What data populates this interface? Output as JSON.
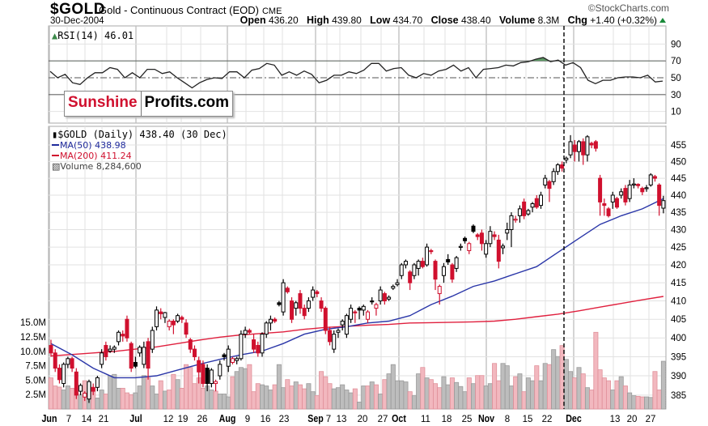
{
  "header": {
    "symbol": "$GOLD",
    "name": "Gold - Continuous Contract (EOD)",
    "exchange": "CME",
    "date": "30-Dec-2004",
    "copyright": "©StockCharts.com",
    "quote": [
      {
        "label": "Open",
        "value": "436.20"
      },
      {
        "label": "High",
        "value": "439.80"
      },
      {
        "label": "Low",
        "value": "434.70"
      },
      {
        "label": "Close",
        "value": "438.40"
      },
      {
        "label": "Volume",
        "value": "8.3M"
      },
      {
        "label": "Chg",
        "value": "+1.40 (+0.32%)"
      }
    ],
    "chg_direction": "up"
  },
  "watermark": {
    "part1": "Sunshine",
    "part2": "Profits.com"
  },
  "colors": {
    "up": "#000000",
    "down": "#d0102e",
    "ma50": "#2a36a8",
    "ma200": "#e0203e",
    "rsi_overbought_fill": "#5e9a66",
    "volume_up": "#bdbdbd",
    "volume_down": "#f2b8bf"
  },
  "chart_data": {
    "type": "candlestick",
    "x_tick_labels": [
      "Jun",
      "7",
      "14",
      "21",
      "Jul",
      "12",
      "19",
      "26",
      "Aug",
      "9",
      "16",
      "23",
      "Sep",
      "7",
      "13",
      "20",
      "27",
      "Oct",
      "11",
      "18",
      "25",
      "Nov",
      "8",
      "15",
      "22",
      "Dec",
      "13",
      "20",
      "27"
    ],
    "x_month_labels": [
      "Jun",
      "Jul",
      "Aug",
      "Sep",
      "Oct",
      "Nov",
      "Dec"
    ],
    "rsi": {
      "legend": "RSI(14) 46.01",
      "yticks": [
        90,
        70,
        50,
        30,
        10
      ],
      "ylim": [
        0,
        100
      ],
      "reference_lines": [
        70,
        50,
        30
      ],
      "values": [
        57.6,
        50,
        54,
        44,
        42,
        50,
        56,
        56,
        62,
        60,
        50,
        56,
        50,
        60,
        60,
        55,
        57,
        50,
        44,
        38,
        44,
        48,
        50,
        49,
        57,
        57,
        50,
        59,
        61,
        67,
        65,
        53,
        57,
        53,
        58,
        54,
        44,
        47,
        53,
        53,
        57,
        55,
        59,
        67,
        67,
        58,
        61,
        62,
        53,
        50,
        55,
        53,
        58,
        60,
        65,
        58,
        62,
        50,
        60,
        61,
        62,
        65,
        64,
        68,
        69,
        72,
        74,
        69,
        71,
        65,
        68,
        62,
        47,
        43,
        47,
        47,
        50,
        51,
        51,
        50,
        53,
        45,
        46.01
      ]
    },
    "price": {
      "legend": "$GOLD (Daily) 438.40 (30 Dec)",
      "scale": "log",
      "yticks": [
        455,
        450,
        445,
        440,
        435,
        430,
        425,
        420,
        415,
        410,
        405,
        400,
        395,
        390,
        385
      ],
      "ohlc": [
        [
          398,
          399.5,
          395,
          396
        ],
        [
          396,
          397,
          391,
          392
        ],
        [
          392,
          393,
          388,
          389
        ],
        [
          388,
          393.5,
          387,
          393
        ],
        [
          393,
          395,
          392,
          394.5
        ],
        [
          394.5,
          395,
          391,
          392
        ],
        [
          391,
          392,
          384,
          385
        ],
        [
          386,
          388,
          385,
          387.5
        ],
        [
          384.5,
          386,
          383.5,
          385.5
        ],
        [
          384,
          389,
          383,
          388.5
        ],
        [
          387,
          388,
          385,
          386
        ],
        [
          387,
          390,
          386,
          389.5
        ],
        [
          393,
          397,
          392,
          396
        ],
        [
          398,
          399,
          394,
          395
        ],
        [
          396.5,
          398,
          396,
          397
        ],
        [
          397,
          398,
          396,
          397.5
        ],
        [
          399,
          402,
          398,
          401.5
        ],
        [
          401,
          402,
          399,
          400.5
        ],
        [
          405,
          406,
          399,
          400
        ],
        [
          398.5,
          399,
          391,
          392
        ],
        [
          393.5,
          395,
          392,
          392.5
        ],
        [
          396,
          398,
          395,
          397.5
        ],
        [
          393,
          399,
          392,
          397.5
        ],
        [
          399,
          400,
          389,
          392
        ],
        [
          397,
          403,
          396,
          402
        ],
        [
          403,
          408.5,
          402,
          407.5
        ],
        [
          407,
          408,
          405,
          406.5
        ],
        [
          405.5,
          407,
          404,
          406.8
        ],
        [
          403,
          405,
          402,
          404.5
        ],
        [
          404.5,
          405,
          401,
          403.5
        ],
        [
          404.5,
          406.5,
          404,
          406
        ],
        [
          405.5,
          406,
          404,
          405
        ],
        [
          404,
          405,
          400,
          401
        ],
        [
          399.5,
          400,
          396,
          397
        ],
        [
          397,
          398,
          394,
          395
        ],
        [
          394,
          395,
          388,
          391
        ],
        [
          393,
          394,
          387,
          388
        ],
        [
          392,
          393,
          386,
          388
        ],
        [
          388,
          392,
          387,
          391.5
        ],
        [
          388,
          389,
          386,
          388.5
        ],
        [
          390,
          394,
          389,
          393
        ],
        [
          395.5,
          396,
          394,
          395
        ],
        [
          392.5,
          398,
          391,
          397
        ],
        [
          393.5,
          395,
          393,
          394.5
        ],
        [
          394,
          395,
          393,
          394.5
        ],
        [
          394.5,
          402,
          394,
          401
        ],
        [
          401,
          403,
          400,
          402
        ],
        [
          402,
          402.5,
          401,
          401.5
        ],
        [
          399.5,
          401,
          396,
          397
        ],
        [
          398,
          399,
          395,
          396
        ],
        [
          396,
          401.5,
          395,
          401
        ],
        [
          401,
          404.5,
          400,
          404
        ],
        [
          404,
          406,
          402,
          405
        ],
        [
          405,
          405.5,
          404,
          404.5
        ],
        [
          409.5,
          410,
          408.5,
          409
        ],
        [
          407,
          416,
          406,
          415
        ],
        [
          413.5,
          414,
          412,
          412.5
        ],
        [
          410,
          411,
          404,
          405
        ],
        [
          408,
          410,
          406,
          409.5
        ],
        [
          412,
          413,
          406.5,
          408
        ],
        [
          408,
          409,
          405,
          406
        ],
        [
          408,
          411,
          407,
          410
        ],
        [
          411,
          414,
          410,
          413
        ],
        [
          412.5,
          413,
          411,
          412
        ],
        [
          410,
          411,
          407,
          408
        ],
        [
          408,
          408.5,
          401,
          402
        ],
        [
          402,
          403,
          398,
          399
        ],
        [
          397,
          402,
          396,
          401
        ],
        [
          401.5,
          402.5,
          400,
          402
        ],
        [
          403.5,
          405,
          402,
          404.5
        ],
        [
          401,
          406.5,
          400,
          406
        ],
        [
          405,
          409,
          404,
          408
        ],
        [
          407,
          407.5,
          404,
          406.8
        ],
        [
          408,
          408.5,
          405,
          407.5
        ],
        [
          407.5,
          409,
          406,
          408.5
        ],
        [
          405,
          407.5,
          404,
          407
        ],
        [
          410,
          411,
          409,
          409.8
        ],
        [
          408,
          409.5,
          406,
          409
        ],
        [
          410,
          414,
          409,
          413
        ],
        [
          412,
          412.5,
          409,
          410
        ],
        [
          410.5,
          411.5,
          410,
          411
        ],
        [
          413.5,
          414.5,
          413,
          414
        ],
        [
          414.5,
          416,
          414,
          415
        ],
        [
          417,
          420.5,
          416,
          420
        ],
        [
          420,
          421.5,
          419,
          421
        ],
        [
          418,
          418.5,
          413,
          415
        ],
        [
          417,
          420.5,
          416,
          420
        ],
        [
          419,
          421.5,
          417,
          421
        ],
        [
          421,
          422,
          419,
          419.5
        ],
        [
          420,
          426,
          419.5,
          425
        ],
        [
          424,
          424.5,
          423,
          423.8
        ],
        [
          421,
          421.5,
          413,
          416
        ],
        [
          412,
          414.5,
          409,
          414
        ],
        [
          417,
          420.5,
          415,
          419.5
        ],
        [
          421.5,
          423,
          420,
          420.8
        ],
        [
          420,
          420.5,
          415,
          416
        ],
        [
          419,
          422.5,
          418,
          422
        ],
        [
          425,
          426,
          424,
          425.2
        ],
        [
          427.5,
          428,
          426,
          426.8
        ],
        [
          424,
          426.5,
          423,
          426
        ],
        [
          431,
          431.5,
          429,
          429.5
        ],
        [
          428.5,
          429,
          427,
          428
        ],
        [
          429,
          430,
          424,
          426
        ],
        [
          423,
          427,
          422,
          426
        ],
        [
          426,
          431,
          425,
          429.5
        ],
        [
          428.5,
          429.5,
          427,
          428
        ],
        [
          427,
          428.5,
          419,
          421
        ],
        [
          424.8,
          426,
          423,
          425.3
        ],
        [
          429,
          432,
          427,
          430
        ],
        [
          430,
          435,
          425,
          434
        ],
        [
          433,
          434,
          432,
          433
        ],
        [
          434,
          437,
          432,
          436
        ],
        [
          438,
          439,
          433,
          434
        ],
        [
          434.5,
          436,
          434,
          435.5
        ],
        [
          436.5,
          438,
          435,
          437.5
        ],
        [
          439,
          440,
          436,
          436.5
        ],
        [
          437,
          441,
          436,
          440
        ],
        [
          443,
          446,
          442,
          445
        ],
        [
          444,
          444.5,
          438,
          442
        ],
        [
          444,
          448,
          443,
          447
        ],
        [
          447,
          449.5,
          446,
          449
        ],
        [
          449,
          450,
          447,
          448
        ],
        [
          450.5,
          451.5,
          449.5,
          451
        ],
        [
          452,
          458,
          451,
          456
        ],
        [
          455,
          456.5,
          450,
          453
        ],
        [
          453,
          456.5,
          450,
          456
        ],
        [
          456,
          457,
          449,
          452
        ],
        [
          452,
          458,
          450,
          457.5
        ],
        [
          455.5,
          456,
          454,
          455
        ],
        [
          456,
          456.5,
          453,
          454
        ],
        [
          445,
          446,
          434,
          438
        ],
        [
          437.5,
          439,
          434,
          437
        ],
        [
          436,
          436.5,
          433.5,
          434
        ],
        [
          438,
          441,
          436,
          440
        ],
        [
          439,
          439.5,
          436,
          436.5
        ],
        [
          440,
          442,
          439,
          441
        ],
        [
          442,
          443,
          437,
          438
        ],
        [
          439,
          444.5,
          438,
          443
        ],
        [
          443,
          445,
          442,
          443.3
        ],
        [
          443.2,
          443.5,
          442,
          442.8
        ],
        [
          442,
          442.5,
          440,
          441
        ],
        [
          442,
          443,
          441,
          442.2
        ],
        [
          443,
          446.5,
          442.5,
          446
        ],
        [
          445.5,
          446,
          444,
          445
        ],
        [
          443,
          443.5,
          434,
          437
        ],
        [
          436.2,
          439.8,
          434.7,
          438.4
        ]
      ],
      "ma50": {
        "legend": "MA(50) 438.98",
        "values_every_5_bars": [
          398.5,
          395.5,
          392,
          389.5,
          389.5,
          390,
          391.5,
          393,
          394.3,
          395.5,
          396.5,
          398.5,
          401,
          402.3,
          403,
          404,
          404.5,
          406,
          409,
          411.3,
          414,
          415.5,
          417.5,
          419.5,
          423.5,
          427.5,
          431.5,
          434,
          436,
          438.98
        ]
      },
      "ma200": {
        "legend": "MA(200) 411.24",
        "values_every_5_bars": [
          395.2,
          395.6,
          396,
          396.4,
          397,
          397.6,
          398.5,
          399.4,
          400.2,
          400.8,
          401.2,
          401.6,
          402.3,
          402.8,
          403.1,
          403.4,
          403.6,
          404,
          404.1,
          404.2,
          404.3,
          404.5,
          405,
          405.7,
          406.4,
          407.3,
          408.3,
          409.3,
          410.3,
          411.24
        ]
      }
    },
    "volume": {
      "legend": "Volume 8,284,600",
      "ytick_labels": [
        "15.0M",
        "12.5M",
        "10.0M",
        "7.5M",
        "5.0M",
        "2.5M"
      ],
      "yticks_millions": [
        15,
        12.5,
        10,
        7.5,
        5,
        2.5
      ],
      "values_millions": [
        5.4,
        4.0,
        3.8,
        3.3,
        4.0,
        3.6,
        2.8,
        2.5,
        4.9,
        4.6,
        3.6,
        1.9,
        3.3,
        2.6,
        5.8,
        6.0,
        3.6,
        3.6,
        2.8,
        2.5,
        2.8,
        4.0,
        5.8,
        5.4,
        4.0,
        2.6,
        4.9,
        3.1,
        3.3,
        6.0,
        5.1,
        3.6,
        7.7,
        7.2,
        4.4,
        5.4,
        3.6,
        4.0,
        3.3,
        3.1,
        2.6,
        2.6,
        2.1,
        5.6,
        6.5,
        7.2,
        7.0,
        7.7,
        3.0,
        4.4,
        4.2,
        4.0,
        3.3,
        4.2,
        7.7,
        3.7,
        5.1,
        4.0,
        4.7,
        4.2,
        3.5,
        4.4,
        3.0,
        2.3,
        6.5,
        5.6,
        4.4,
        3.5,
        3.7,
        4.2,
        3.3,
        2.8,
        3.5,
        1.2,
        4.0,
        4.0,
        4.7,
        4.2,
        2.6,
        5.1,
        6.1,
        7.7,
        4.9,
        4.9,
        4.7,
        3.0,
        2.3,
        6.1,
        7.2,
        5.4,
        5.1,
        4.4,
        3.7,
        5.6,
        4.2,
        5.4,
        4.6,
        3.9,
        3.0,
        5.4,
        4.4,
        5.8,
        5.8,
        4.0,
        4.4,
        7.9,
        4.9,
        7.9,
        7.5,
        4.0,
        5.6,
        6.1,
        3.0,
        5.4,
        4.9,
        7.5,
        4.9,
        7.9,
        7.7,
        10.3,
        9.1,
        11.0,
        8.6,
        6.5,
        5.4,
        7.2,
        6.1,
        3.7,
        3.3,
        13.3,
        6.8,
        5.4,
        4.9,
        3.3,
        4.9,
        5.6,
        4.0,
        2.8,
        2.3,
        2.2,
        2.1,
        2.1,
        2.0,
        6.5,
        3.3,
        8.28
      ]
    }
  }
}
